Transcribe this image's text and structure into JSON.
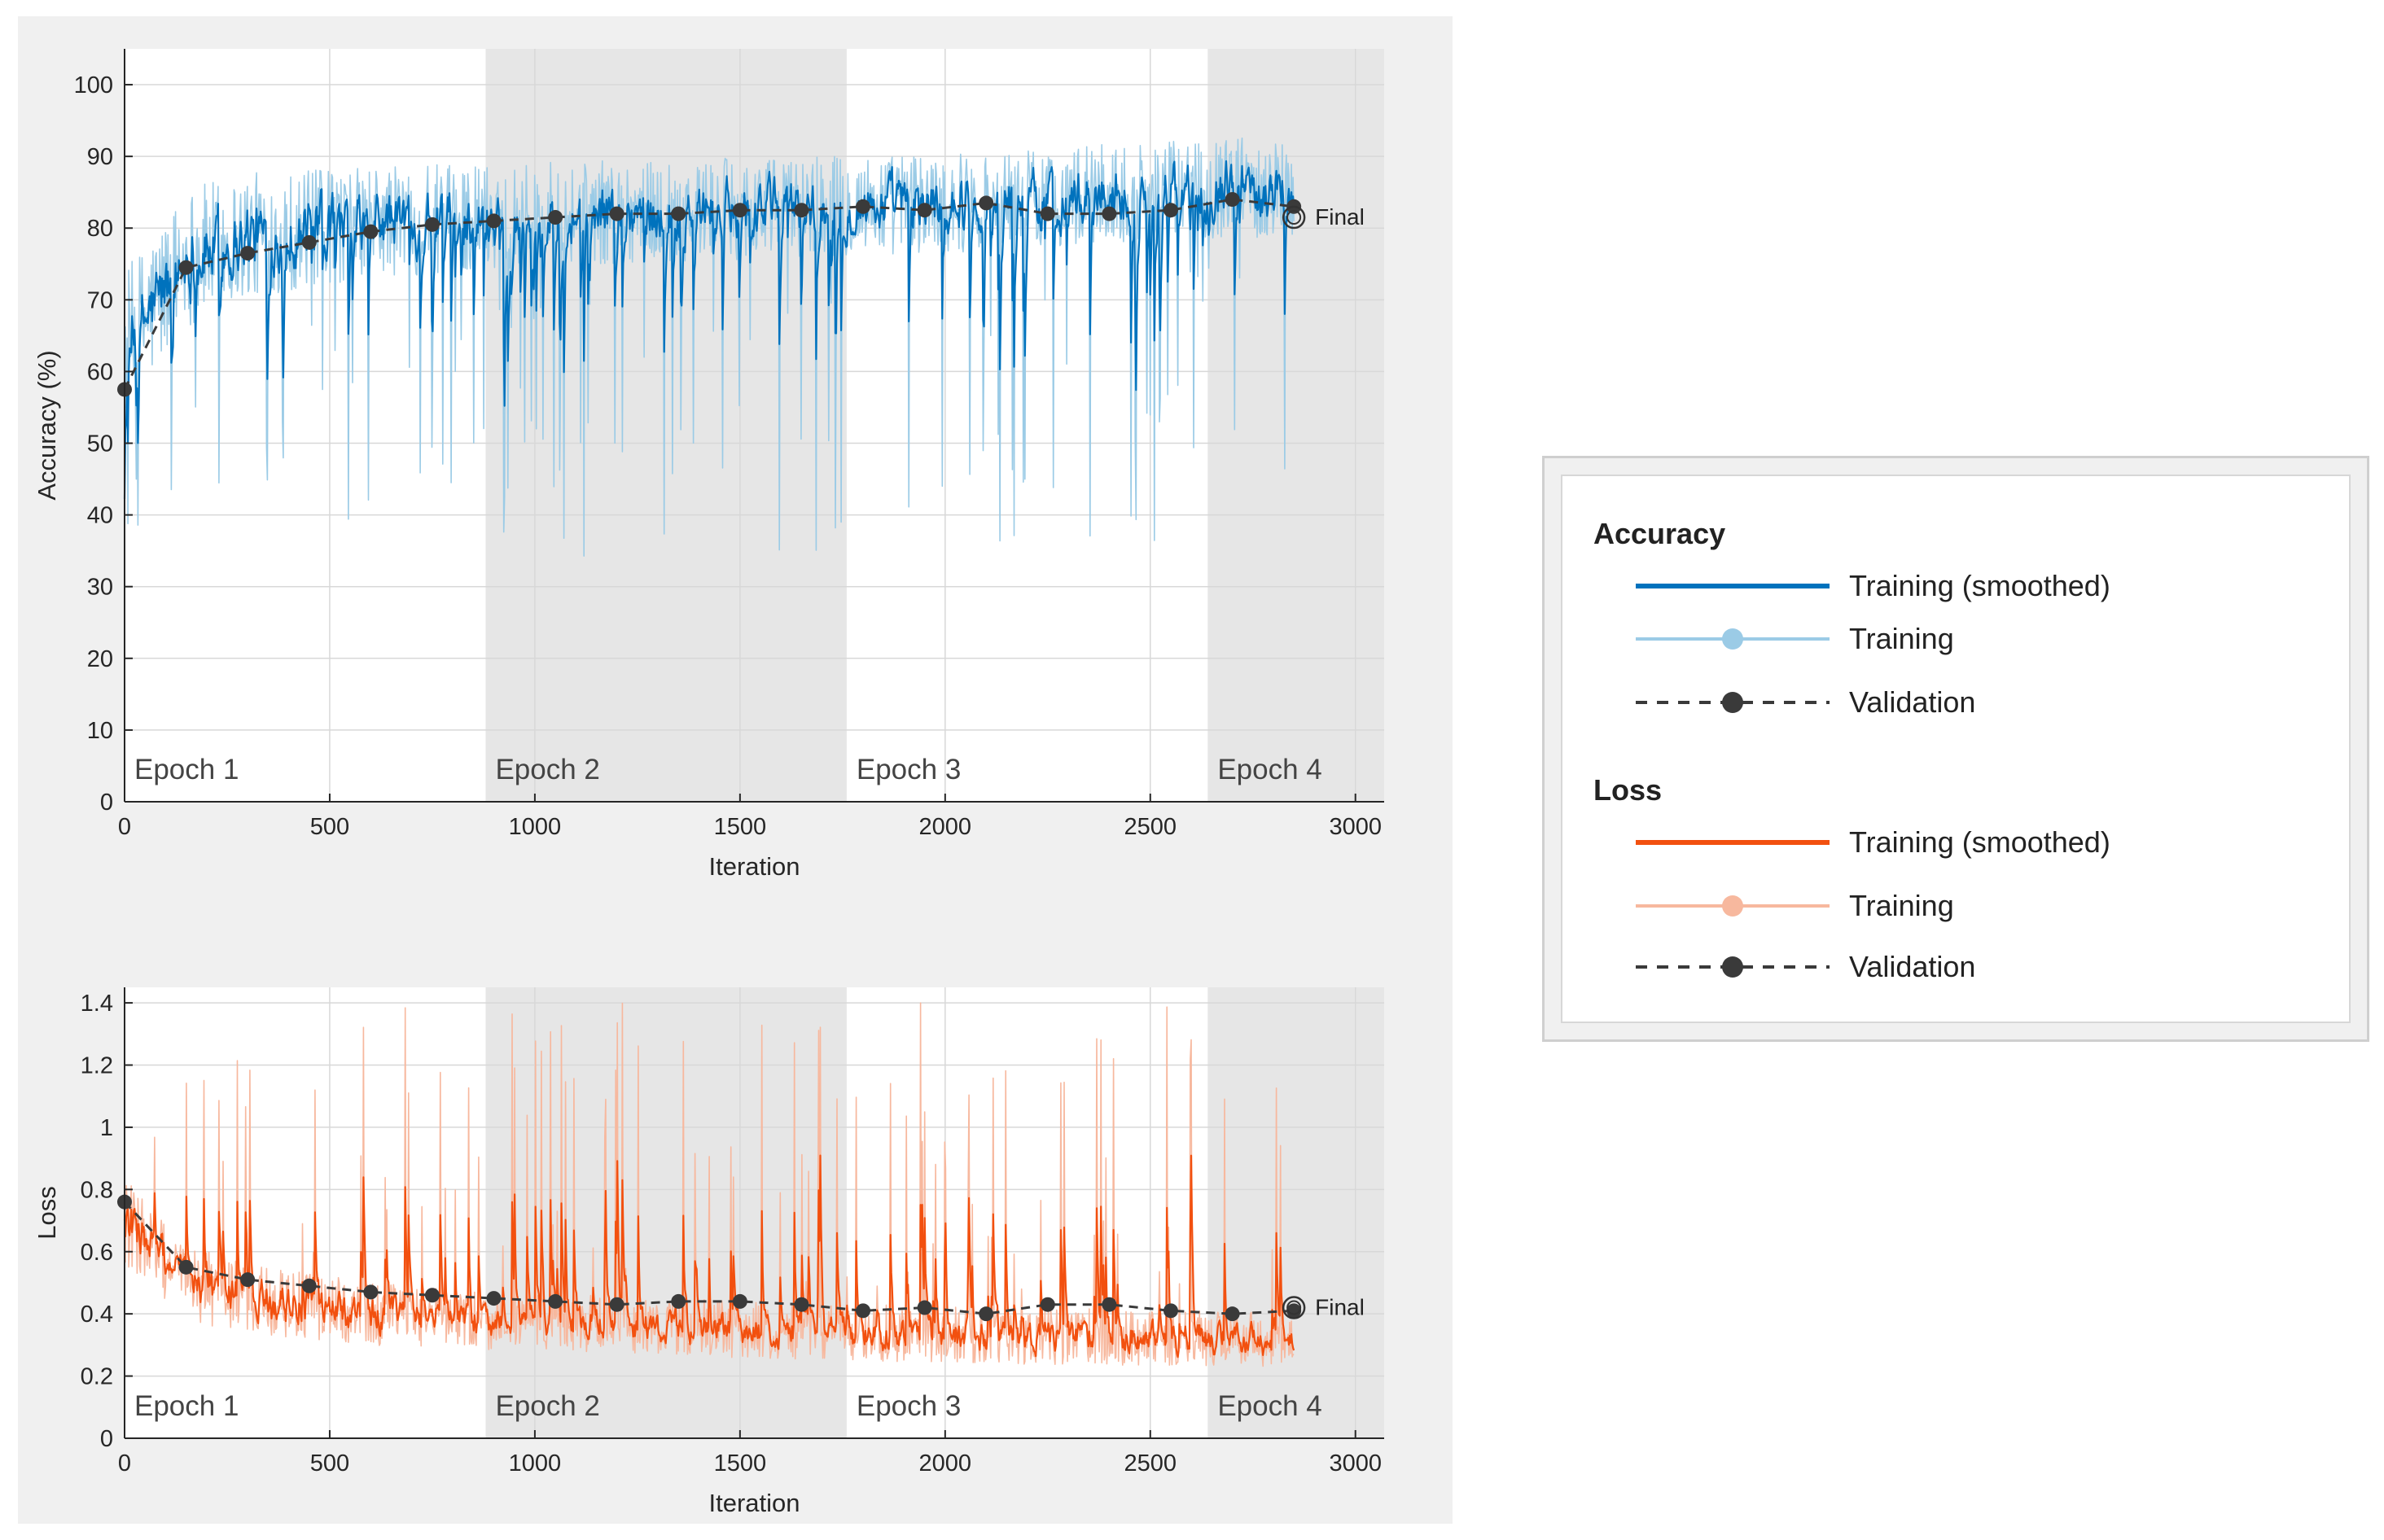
{
  "colors": {
    "acc_smooth": "#0072bd",
    "acc_raw": "#9bcbe6",
    "loss_smooth": "#f2500f",
    "loss_raw": "#f7b89e",
    "validation": "#3a3a3a",
    "epoch_shade": "#e6e6e6",
    "panel_bg": "#f0f0f0"
  },
  "legend": {
    "accuracy_heading": "Accuracy",
    "loss_heading": "Loss",
    "acc_items": [
      {
        "label": "Training (smoothed)",
        "style": "smooth"
      },
      {
        "label": "Training",
        "style": "raw"
      },
      {
        "label": "Validation",
        "style": "validation"
      }
    ],
    "loss_items": [
      {
        "label": "Training (smoothed)",
        "style": "smooth"
      },
      {
        "label": "Training",
        "style": "raw"
      },
      {
        "label": "Validation",
        "style": "validation"
      }
    ]
  },
  "chart_data": [
    {
      "type": "line",
      "id": "accuracy",
      "xlabel": "Iteration",
      "ylabel": "Accuracy (%)",
      "xlim": [
        0,
        3070
      ],
      "ylim": [
        0,
        105
      ],
      "xticks": [
        0,
        500,
        1000,
        1500,
        2000,
        2500,
        3000
      ],
      "yticks": [
        0,
        10,
        20,
        30,
        40,
        50,
        60,
        70,
        80,
        90,
        100
      ],
      "epochs": [
        {
          "label": "Epoch 1",
          "start": 0,
          "end": 880
        },
        {
          "label": "Epoch 2",
          "start": 880,
          "end": 1760
        },
        {
          "label": "Epoch 3",
          "start": 1760,
          "end": 2640
        },
        {
          "label": "Epoch 4",
          "start": 2640,
          "end": 3070
        }
      ],
      "training_end": 2850,
      "training_raw_range": {
        "min": 34,
        "max": 95
      },
      "training_smoothed_trend": {
        "x": [
          0,
          150,
          300,
          600,
          900,
          1500,
          2100,
          2700,
          2850
        ],
        "y": [
          62,
          75,
          78,
          80,
          81,
          82,
          83,
          85,
          85
        ]
      },
      "validation": {
        "x": [
          0,
          150,
          300,
          450,
          600,
          750,
          900,
          1050,
          1200,
          1350,
          1500,
          1650,
          1800,
          1950,
          2100,
          2250,
          2400,
          2550,
          2700,
          2850
        ],
        "y": [
          57.5,
          74.5,
          76.5,
          78,
          79.5,
          80.5,
          81,
          81.5,
          82,
          82,
          82.5,
          82.5,
          83,
          82.5,
          83.5,
          82,
          82,
          82.5,
          84,
          83
        ]
      },
      "final": {
        "x": 2850,
        "y": 81.5,
        "label": "Final"
      }
    },
    {
      "type": "line",
      "id": "loss",
      "xlabel": "Iteration",
      "ylabel": "Loss",
      "xlim": [
        0,
        3070
      ],
      "ylim": [
        0,
        1.45
      ],
      "xticks": [
        0,
        500,
        1000,
        1500,
        2000,
        2500,
        3000
      ],
      "yticks": [
        0,
        0.2,
        0.4,
        0.6,
        0.8,
        1,
        1.2,
        1.4
      ],
      "epochs": [
        {
          "label": "Epoch 1",
          "start": 0,
          "end": 880
        },
        {
          "label": "Epoch 2",
          "start": 880,
          "end": 1760
        },
        {
          "label": "Epoch 3",
          "start": 1760,
          "end": 2640
        },
        {
          "label": "Epoch 4",
          "start": 2640,
          "end": 3070
        }
      ],
      "training_end": 2850,
      "training_raw_range": {
        "min": 0.1,
        "max": 1.4
      },
      "training_smoothed_trend": {
        "x": [
          0,
          150,
          300,
          600,
          900,
          1500,
          2100,
          2700,
          2850
        ],
        "y": [
          0.7,
          0.5,
          0.45,
          0.4,
          0.38,
          0.35,
          0.33,
          0.32,
          0.32
        ]
      },
      "validation": {
        "x": [
          0,
          150,
          300,
          450,
          600,
          750,
          900,
          1050,
          1200,
          1350,
          1500,
          1650,
          1800,
          1950,
          2100,
          2250,
          2400,
          2550,
          2700,
          2850
        ],
        "y": [
          0.76,
          0.55,
          0.51,
          0.49,
          0.47,
          0.46,
          0.45,
          0.44,
          0.43,
          0.44,
          0.44,
          0.43,
          0.41,
          0.42,
          0.4,
          0.43,
          0.43,
          0.41,
          0.4,
          0.41
        ]
      },
      "final": {
        "x": 2850,
        "y": 0.42,
        "label": "Final"
      }
    }
  ]
}
